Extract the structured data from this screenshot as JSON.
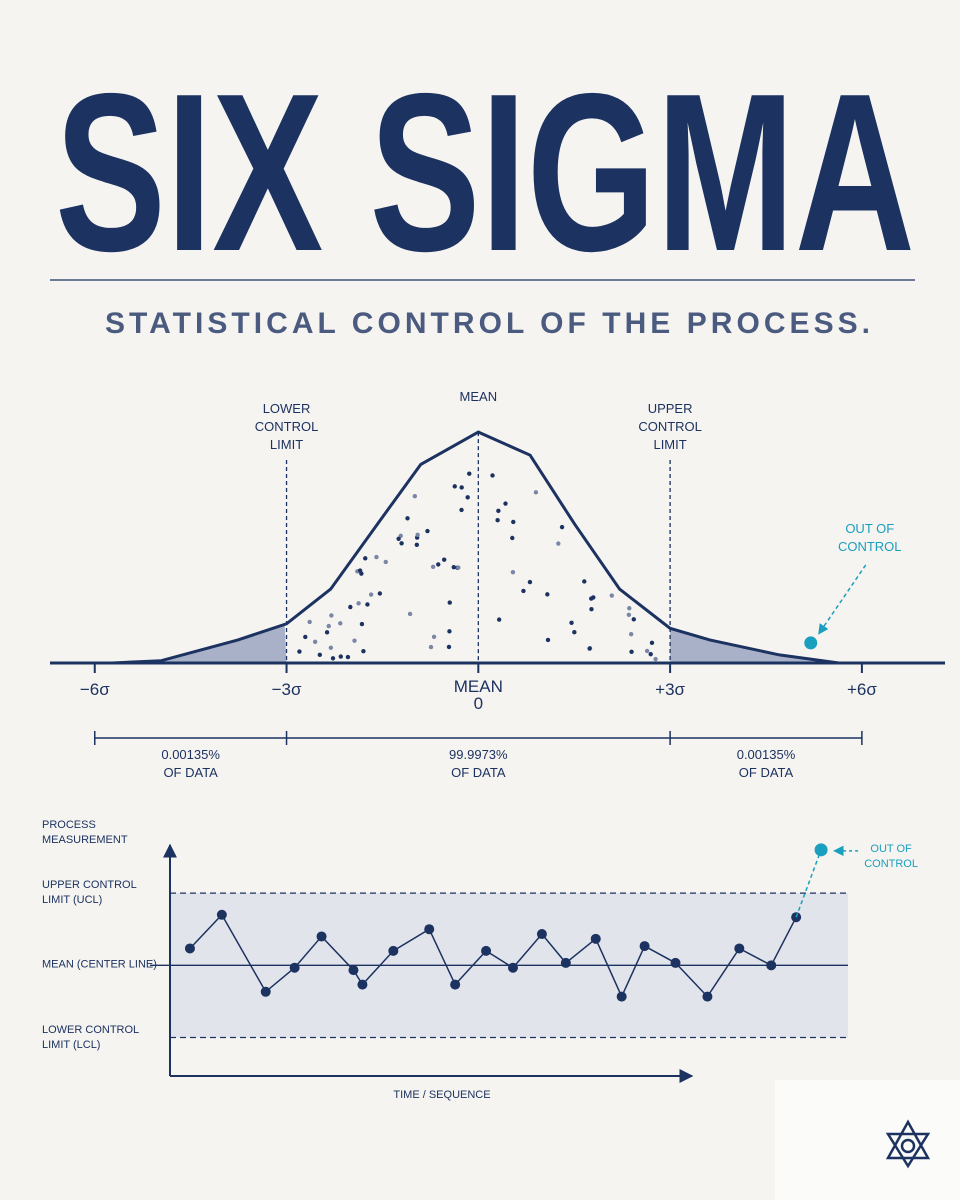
{
  "header": {
    "title": "SIX SIGMA",
    "subtitle": "STATISTICAL CONTROL OF THE PROCESS."
  },
  "chart_data": [
    {
      "type": "curve",
      "x": [
        -5.73,
        -4.96,
        -3.76,
        -3.0,
        -2.31,
        -1.53,
        -0.9,
        0,
        0.81,
        1.51,
        2.21,
        3.0,
        3.62,
        4.71,
        5.64
      ],
      "values": [
        0,
        0.01,
        0.1,
        0.17,
        0.32,
        0.62,
        0.86,
        1,
        0.9,
        0.6,
        0.32,
        0.15,
        0.1,
        0.035,
        0
      ],
      "color": "#1c3260",
      "tail_color": "#a9b1c8",
      "xlim": [
        -6.7,
        7.3
      ],
      "ylim": [
        0,
        1.1
      ],
      "xticks": [
        {
          "value": -6,
          "label": "−6σ"
        },
        {
          "value": -3,
          "label": "−3σ"
        },
        0,
        {
          "value": 3,
          "label": "+3σ"
        },
        {
          "value": 6,
          "label": "+6σ"
        }
      ],
      "mean": {
        "value": 0,
        "label": "MEAN"
      },
      "limits": [
        {
          "value": -3,
          "label": "LOWER\nCONTROL\nLIMIT"
        },
        {
          "value": 3,
          "label": "UPPER\nCONTROL\nLIMIT"
        }
      ],
      "outlier": {
        "x": 5.2,
        "y": 0.087,
        "label": "OUT OF\nCONTROL",
        "color": "#1a9fbf"
      },
      "regions": {
        "edges": [
          -6,
          -3,
          3,
          6
        ],
        "values": [
          0.00135,
          99.9973,
          0.00135
        ],
        "value_labels": [
          "0.00135%",
          "99.9973%",
          "0.00135%"
        ],
        "note": "OF DATA"
      }
    },
    {
      "type": "control",
      "x": [
        4,
        10.4,
        19.2,
        25,
        30.4,
        36.8,
        38.6,
        44.8,
        52,
        57.2,
        63.4,
        68.8,
        74.6,
        79.4,
        85.4,
        90.6,
        95.2,
        101.4,
        107.8,
        114.2,
        120.6,
        125.6,
        130.6
      ],
      "values": [
        0.7,
        2.1,
        -1.1,
        -0.1,
        1.2,
        -0.2,
        -0.8,
        0.6,
        1.5,
        -0.8,
        0.6,
        -0.1,
        1.3,
        0.1,
        1.1,
        -1.3,
        0.8,
        0.1,
        -1.3,
        0.7,
        0,
        2,
        4.8
      ],
      "color": "#1c3260",
      "outlier_color": "#1a9fbf",
      "band_color": "#e2e4eb",
      "xlim": [
        0,
        136
      ],
      "ylim": [
        -4.6,
        5
      ],
      "yticks": [
        {
          "value": 3,
          "label": "UPPER CONTROL\nLIMIT (UCL)"
        },
        {
          "value": 0,
          "label": "MEAN (CENTER LINE)"
        },
        {
          "value": -3,
          "label": "LOWER CONTROL\nLIMIT (LCL)"
        }
      ],
      "y_label": "PROCESS\nMEASUREMENT",
      "x_label": "TIME / SEQUENCE",
      "annotation": "OUT OF\nCONTROL"
    }
  ]
}
